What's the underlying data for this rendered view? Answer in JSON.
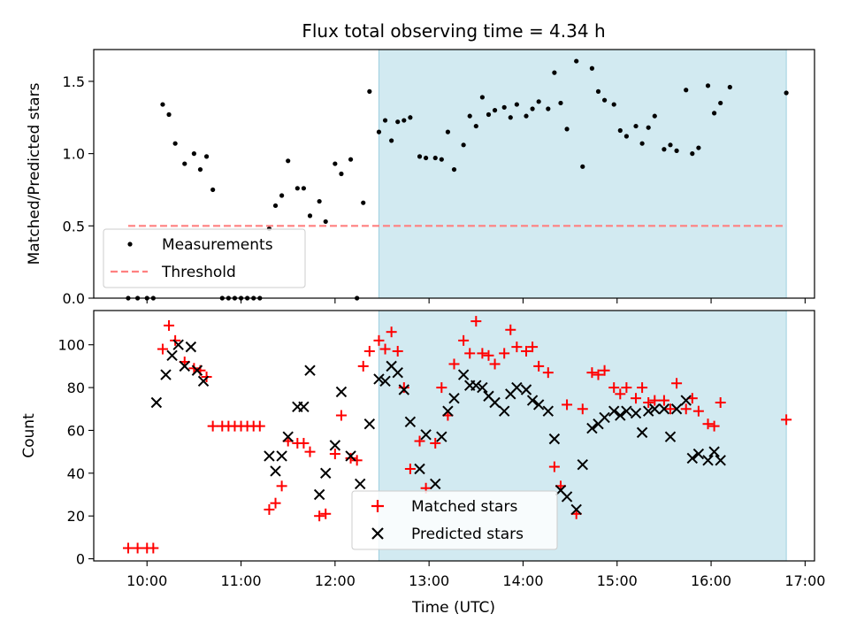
{
  "figure": {
    "title": "Flux total observing time = 4.34 h"
  },
  "chart_data": [
    {
      "type": "scatter",
      "panel": "top",
      "ylabel": "Matched/Predicted stars",
      "xlabel": "",
      "xlim": [
        "09:26",
        "17:06"
      ],
      "ylim": [
        0,
        1.72
      ],
      "yticks": [
        "0.0",
        "0.5",
        "1.0",
        "1.5"
      ],
      "grid": false,
      "legend_position": "lower-left",
      "shaded_span": {
        "from": "12:28",
        "to": "16:48",
        "color": "#add8e6"
      },
      "series": [
        {
          "name": "Measurements",
          "color": "#000000",
          "marker": "dot",
          "points": [
            [
              "09:48",
              0.0
            ],
            [
              "09:54",
              0.0
            ],
            [
              "10:00",
              0.0
            ],
            [
              "10:04",
              0.0
            ],
            [
              "10:10",
              1.34
            ],
            [
              "10:14",
              1.27
            ],
            [
              "10:18",
              1.07
            ],
            [
              "10:24",
              0.93
            ],
            [
              "10:30",
              1.0
            ],
            [
              "10:34",
              0.89
            ],
            [
              "10:38",
              0.98
            ],
            [
              "10:42",
              0.75
            ],
            [
              "10:48",
              0.0
            ],
            [
              "10:52",
              0.0
            ],
            [
              "10:56",
              0.0
            ],
            [
              "11:00",
              0.0
            ],
            [
              "11:04",
              0.0
            ],
            [
              "11:08",
              0.0
            ],
            [
              "11:12",
              0.0
            ],
            [
              "11:18",
              0.48
            ],
            [
              "11:22",
              0.64
            ],
            [
              "11:26",
              0.71
            ],
            [
              "11:30",
              0.95
            ],
            [
              "11:36",
              0.76
            ],
            [
              "11:40",
              0.76
            ],
            [
              "11:44",
              0.57
            ],
            [
              "11:50",
              0.67
            ],
            [
              "11:54",
              0.53
            ],
            [
              "12:00",
              0.93
            ],
            [
              "12:04",
              0.86
            ],
            [
              "12:10",
              0.96
            ],
            [
              "12:14",
              0.0
            ],
            [
              "12:18",
              0.66
            ],
            [
              "12:22",
              1.43
            ],
            [
              "12:28",
              1.15
            ],
            [
              "12:32",
              1.23
            ],
            [
              "12:36",
              1.09
            ],
            [
              "12:40",
              1.22
            ],
            [
              "12:44",
              1.23
            ],
            [
              "12:48",
              1.25
            ],
            [
              "12:54",
              0.98
            ],
            [
              "12:58",
              0.97
            ],
            [
              "13:04",
              0.97
            ],
            [
              "13:08",
              0.96
            ],
            [
              "13:12",
              1.15
            ],
            [
              "13:16",
              0.89
            ],
            [
              "13:22",
              1.06
            ],
            [
              "13:26",
              1.26
            ],
            [
              "13:30",
              1.19
            ],
            [
              "13:34",
              1.39
            ],
            [
              "13:38",
              1.27
            ],
            [
              "13:42",
              1.3
            ],
            [
              "13:48",
              1.32
            ],
            [
              "13:52",
              1.25
            ],
            [
              "13:56",
              1.34
            ],
            [
              "14:02",
              1.26
            ],
            [
              "14:06",
              1.31
            ],
            [
              "14:10",
              1.36
            ],
            [
              "14:16",
              1.31
            ],
            [
              "14:20",
              1.56
            ],
            [
              "14:24",
              1.35
            ],
            [
              "14:28",
              1.17
            ],
            [
              "14:34",
              1.64
            ],
            [
              "14:38",
              0.91
            ],
            [
              "14:44",
              1.59
            ],
            [
              "14:48",
              1.43
            ],
            [
              "14:52",
              1.37
            ],
            [
              "14:58",
              1.34
            ],
            [
              "15:02",
              1.16
            ],
            [
              "15:06",
              1.12
            ],
            [
              "15:12",
              1.19
            ],
            [
              "15:16",
              1.07
            ],
            [
              "15:20",
              1.18
            ],
            [
              "15:24",
              1.26
            ],
            [
              "15:30",
              1.03
            ],
            [
              "15:34",
              1.06
            ],
            [
              "15:38",
              1.02
            ],
            [
              "15:44",
              1.44
            ],
            [
              "15:48",
              1.0
            ],
            [
              "15:52",
              1.04
            ],
            [
              "15:58",
              1.47
            ],
            [
              "16:02",
              1.28
            ],
            [
              "16:06",
              1.35
            ],
            [
              "16:12",
              1.46
            ],
            [
              "16:48",
              1.42
            ]
          ]
        },
        {
          "name": "Threshold",
          "color": "#ff8080",
          "marker": "dashed-line",
          "points": [
            [
              "09:48",
              0.5
            ],
            [
              "16:48",
              0.5
            ]
          ]
        }
      ]
    },
    {
      "type": "scatter",
      "panel": "bottom",
      "ylabel": "Count",
      "xlabel": "Time (UTC)",
      "xlim": [
        "09:26",
        "17:06"
      ],
      "ylim": [
        -1,
        116
      ],
      "yticks": [
        "0",
        "20",
        "40",
        "60",
        "80",
        "100"
      ],
      "xticks": [
        "10:00",
        "11:00",
        "12:00",
        "13:00",
        "14:00",
        "15:00",
        "16:00",
        "17:00"
      ],
      "grid": false,
      "legend_position": "lower-center",
      "shaded_span": {
        "from": "12:28",
        "to": "16:48",
        "color": "#add8e6"
      },
      "series": [
        {
          "name": "Matched stars",
          "color": "#ff0000",
          "marker": "plus",
          "points": [
            [
              "09:48",
              5
            ],
            [
              "09:54",
              5
            ],
            [
              "10:00",
              5
            ],
            [
              "10:04",
              5
            ],
            [
              "10:10",
              98
            ],
            [
              "10:14",
              109
            ],
            [
              "10:18",
              102
            ],
            [
              "10:24",
              92
            ],
            [
              "10:30",
              89
            ],
            [
              "10:34",
              88
            ],
            [
              "10:38",
              85
            ],
            [
              "10:42",
              62
            ],
            [
              "10:48",
              62
            ],
            [
              "10:52",
              62
            ],
            [
              "10:56",
              62
            ],
            [
              "11:00",
              62
            ],
            [
              "11:04",
              62
            ],
            [
              "11:08",
              62
            ],
            [
              "11:12",
              62
            ],
            [
              "11:18",
              23
            ],
            [
              "11:22",
              26
            ],
            [
              "11:26",
              34
            ],
            [
              "11:30",
              55
            ],
            [
              "11:36",
              54
            ],
            [
              "11:40",
              54
            ],
            [
              "11:44",
              50
            ],
            [
              "11:50",
              20
            ],
            [
              "11:54",
              21
            ],
            [
              "12:00",
              49
            ],
            [
              "12:04",
              67
            ],
            [
              "12:10",
              47
            ],
            [
              "12:14",
              46
            ],
            [
              "12:18",
              90
            ],
            [
              "12:22",
              97
            ],
            [
              "12:28",
              102
            ],
            [
              "12:32",
              98
            ],
            [
              "12:36",
              106
            ],
            [
              "12:40",
              97
            ],
            [
              "12:44",
              80
            ],
            [
              "12:48",
              42
            ],
            [
              "12:54",
              55
            ],
            [
              "12:58",
              33
            ],
            [
              "13:04",
              54
            ],
            [
              "13:08",
              80
            ],
            [
              "13:12",
              67
            ],
            [
              "13:16",
              91
            ],
            [
              "13:22",
              102
            ],
            [
              "13:26",
              96
            ],
            [
              "13:30",
              111
            ],
            [
              "13:34",
              96
            ],
            [
              "13:38",
              95
            ],
            [
              "13:42",
              91
            ],
            [
              "13:48",
              96
            ],
            [
              "13:52",
              107
            ],
            [
              "13:56",
              99
            ],
            [
              "14:02",
              97
            ],
            [
              "14:06",
              99
            ],
            [
              "14:10",
              90
            ],
            [
              "14:16",
              87
            ],
            [
              "14:20",
              43
            ],
            [
              "14:24",
              34
            ],
            [
              "14:28",
              72
            ],
            [
              "14:34",
              21
            ],
            [
              "14:38",
              70
            ],
            [
              "14:44",
              87
            ],
            [
              "14:48",
              86
            ],
            [
              "14:52",
              88
            ],
            [
              "14:58",
              80
            ],
            [
              "15:02",
              77
            ],
            [
              "15:06",
              80
            ],
            [
              "15:12",
              75
            ],
            [
              "15:16",
              80
            ],
            [
              "15:20",
              73
            ],
            [
              "15:24",
              74
            ],
            [
              "15:30",
              74
            ],
            [
              "15:34",
              70
            ],
            [
              "15:38",
              82
            ],
            [
              "15:44",
              70
            ],
            [
              "15:48",
              75
            ],
            [
              "15:52",
              69
            ],
            [
              "15:58",
              63
            ],
            [
              "16:02",
              62
            ],
            [
              "16:06",
              73
            ],
            [
              "16:48",
              65
            ]
          ]
        },
        {
          "name": "Predicted stars",
          "color": "#000000",
          "marker": "x",
          "points": [
            [
              "10:06",
              73
            ],
            [
              "10:12",
              86
            ],
            [
              "10:16",
              95
            ],
            [
              "10:20",
              100
            ],
            [
              "10:24",
              90
            ],
            [
              "10:28",
              99
            ],
            [
              "10:32",
              88
            ],
            [
              "10:36",
              83
            ],
            [
              "11:18",
              48
            ],
            [
              "11:22",
              41
            ],
            [
              "11:26",
              48
            ],
            [
              "11:30",
              57
            ],
            [
              "11:36",
              71
            ],
            [
              "11:40",
              71
            ],
            [
              "11:44",
              88
            ],
            [
              "11:50",
              30
            ],
            [
              "11:54",
              40
            ],
            [
              "12:00",
              53
            ],
            [
              "12:04",
              78
            ],
            [
              "12:10",
              48
            ],
            [
              "12:16",
              35
            ],
            [
              "12:22",
              63
            ],
            [
              "12:28",
              84
            ],
            [
              "12:32",
              83
            ],
            [
              "12:36",
              90
            ],
            [
              "12:40",
              87
            ],
            [
              "12:44",
              79
            ],
            [
              "12:48",
              64
            ],
            [
              "12:54",
              42
            ],
            [
              "12:58",
              58
            ],
            [
              "13:04",
              35
            ],
            [
              "13:08",
              57
            ],
            [
              "13:12",
              69
            ],
            [
              "13:16",
              75
            ],
            [
              "13:22",
              86
            ],
            [
              "13:26",
              81
            ],
            [
              "13:30",
              81
            ],
            [
              "13:34",
              80
            ],
            [
              "13:38",
              76
            ],
            [
              "13:42",
              73
            ],
            [
              "13:48",
              69
            ],
            [
              "13:52",
              77
            ],
            [
              "13:56",
              80
            ],
            [
              "14:02",
              79
            ],
            [
              "14:06",
              74
            ],
            [
              "14:10",
              72
            ],
            [
              "14:16",
              69
            ],
            [
              "14:20",
              56
            ],
            [
              "14:24",
              32
            ],
            [
              "14:28",
              29
            ],
            [
              "14:34",
              23
            ],
            [
              "14:38",
              44
            ],
            [
              "14:44",
              61
            ],
            [
              "14:48",
              63
            ],
            [
              "14:52",
              66
            ],
            [
              "14:58",
              69
            ],
            [
              "15:02",
              67
            ],
            [
              "15:06",
              69
            ],
            [
              "15:12",
              68
            ],
            [
              "15:16",
              59
            ],
            [
              "15:20",
              69
            ],
            [
              "15:24",
              70
            ],
            [
              "15:30",
              70
            ],
            [
              "15:34",
              57
            ],
            [
              "15:38",
              70
            ],
            [
              "15:44",
              74
            ],
            [
              "15:48",
              47
            ],
            [
              "15:52",
              49
            ],
            [
              "15:58",
              46
            ],
            [
              "16:02",
              50
            ],
            [
              "16:06",
              46
            ]
          ]
        }
      ]
    }
  ]
}
